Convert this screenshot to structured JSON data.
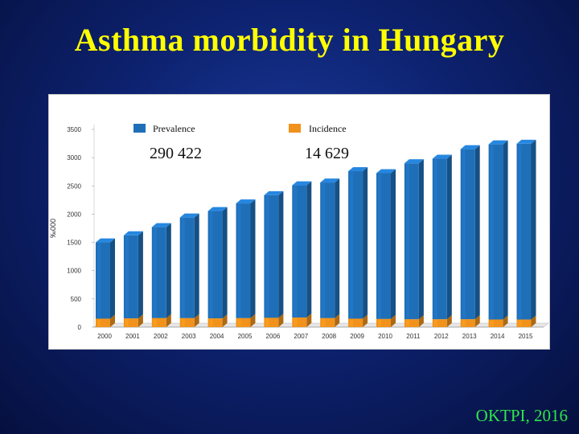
{
  "title": "Asthma morbidity in Hungary",
  "source": "OKTPI, 2016",
  "colors": {
    "background": "#0d2270",
    "title": "#ffff00",
    "source": "#2ee64a",
    "prevalence": "#1f6fb8",
    "incidence": "#f0921c"
  },
  "chart_data": {
    "type": "bar",
    "stacked": true,
    "categories": [
      "2000",
      "2001",
      "2002",
      "2003",
      "2004",
      "2005",
      "2006",
      "2007",
      "2008",
      "2009",
      "2010",
      "2011",
      "2012",
      "2013",
      "2014",
      "2015"
    ],
    "series": [
      {
        "name": "Incidence",
        "color": "#f0921c",
        "values": [
          150,
          155,
          160,
          160,
          155,
          160,
          165,
          170,
          160,
          150,
          145,
          140,
          140,
          140,
          135,
          135
        ]
      },
      {
        "name": "Prevalence",
        "color": "#1f6fb8",
        "values": [
          1350,
          1470,
          1610,
          1780,
          1900,
          2030,
          2170,
          2340,
          2400,
          2610,
          2580,
          2760,
          2840,
          3010,
          3100,
          3110
        ]
      }
    ],
    "legend_values": {
      "Prevalence": "290 422",
      "Incidence": "14 629"
    },
    "ylabel": "‰000",
    "yticks": [
      0,
      500,
      1000,
      1500,
      2000,
      2500,
      3000,
      3500
    ],
    "ylim": [
      0,
      3500
    ],
    "legend_position": "top",
    "grid": false,
    "style": "3d"
  }
}
